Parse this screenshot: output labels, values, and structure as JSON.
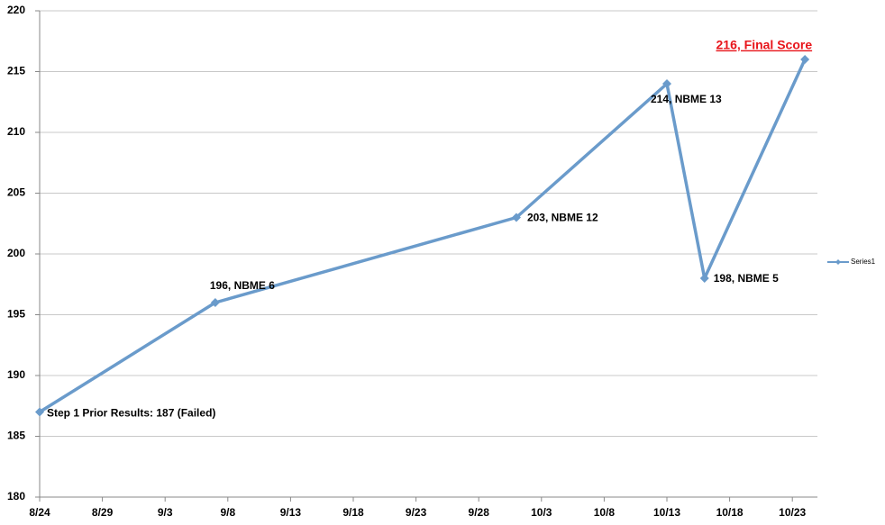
{
  "chart_data": {
    "type": "line",
    "x": [
      "8/24",
      "9/7",
      "10/1",
      "10/13",
      "10/16",
      "10/24"
    ],
    "series": [
      {
        "name": "Series1",
        "color": "#6a9bcb",
        "values": [
          187,
          196,
          203,
          214,
          198,
          216
        ],
        "value_labels": [
          "Step 1 Prior Results: 187 (Failed)",
          "196, NBME 6",
          "203, NBME 12",
          "214, NBME 13",
          "198, NBME 5",
          "216, Final Score"
        ]
      }
    ],
    "xlim": [
      "8/24",
      "10/25"
    ],
    "xticks": [
      "8/24",
      "8/29",
      "9/3",
      "9/8",
      "9/13",
      "9/18",
      "9/23",
      "9/28",
      "10/3",
      "10/8",
      "10/13",
      "10/18",
      "10/23"
    ],
    "ylim": [
      180,
      220
    ],
    "yticks": [
      180,
      185,
      190,
      195,
      200,
      205,
      210,
      215,
      220
    ],
    "grid": true,
    "legend": "right"
  }
}
